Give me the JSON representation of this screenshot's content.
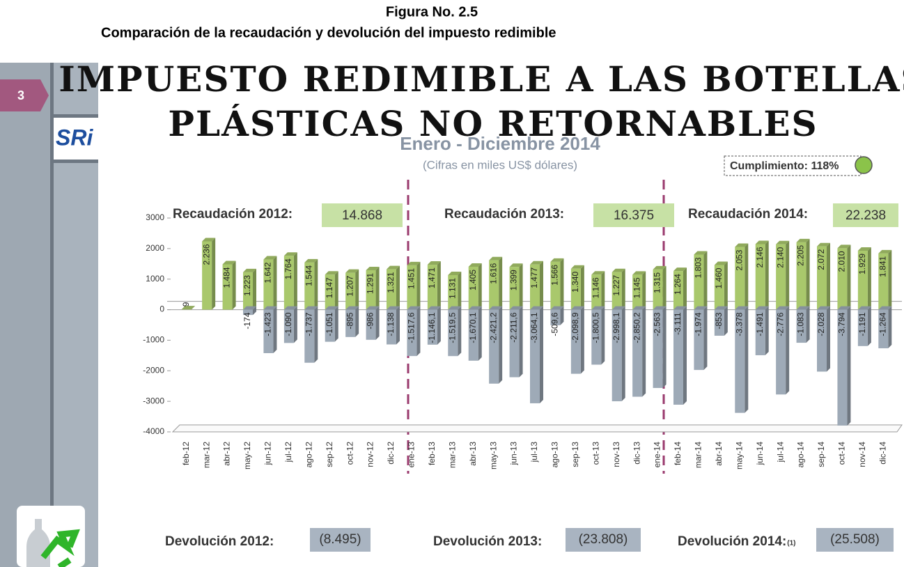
{
  "chart_data": {
    "type": "bar",
    "figure_label": "Figura No. 2.5",
    "caption": "Comparación de la recaudación y devolución del impuesto redimible",
    "title_lines": [
      "IMPUESTO REDIMIBLE A LAS BOTELLAS",
      "PLÁSTICAS NO RETORNABLES"
    ],
    "subtitle": "Enero - Diciembre 2014",
    "units_note": "(Cifras en miles US$ dólares)",
    "compliance": "Cumplimiento: 118%",
    "badge": "3",
    "logo": "SRi",
    "categories": [
      "feb-12",
      "mar-12",
      "abr-12",
      "may-12",
      "jun-12",
      "jul-12",
      "ago-12",
      "sep-12",
      "oct-12",
      "nov-12",
      "dic-12",
      "ene-13",
      "feb-13",
      "mar-13",
      "abr-13",
      "may-13",
      "jun-13",
      "jul-13",
      "ago-13",
      "sep-13",
      "oct-13",
      "nov-13",
      "dic-13",
      "ene-14",
      "feb-14",
      "mar-14",
      "abr-14",
      "may-14",
      "jun-14",
      "jul-14",
      "ago-14",
      "sep-14",
      "oct-14",
      "nov-14",
      "dic-14"
    ],
    "series": [
      {
        "color": "#a9c86c",
        "values": [
          9,
          2236,
          1484,
          1223,
          1642,
          1764,
          1544,
          1147,
          1207,
          1291,
          1321,
          1451,
          1471,
          1131,
          1405,
          1616,
          1399,
          1477,
          1566,
          1340,
          1146,
          1227,
          1145,
          1315,
          1264,
          1803,
          1460,
          2053,
          2146,
          2140,
          2205,
          2072,
          2010,
          1929,
          1841
        ],
        "value_labels": [
          "9",
          "2.236",
          "1.484",
          "1.223",
          "1.642",
          "1.764",
          "1.544",
          "1.147",
          "1.207",
          "1.291",
          "1.321",
          "1.451",
          "1.471",
          "1.131",
          "1.405",
          "1.616",
          "1.399",
          "1.477",
          "1.566",
          "1.340",
          "1.146",
          "1.227",
          "1.145",
          "1.315",
          "1.264",
          "1.803",
          "1.460",
          "2.053",
          "2.146",
          "2.140",
          "2.205",
          "2.072",
          "2.010",
          "1.929",
          "1.841"
        ]
      },
      {
        "color": "#9eaab7",
        "values": [
          null,
          null,
          null,
          -174,
          -1423,
          -1090,
          -1737,
          -1051,
          -895,
          -986,
          -1138,
          -1517.6,
          -1146.1,
          -1519.5,
          -1670.1,
          -2421.2,
          -2211.6,
          -3064.1,
          -509.6,
          -2098.9,
          -1800.5,
          -2998.1,
          -2850.2,
          -2563,
          -3111,
          -1974,
          -853,
          -3378,
          -1491,
          -2776,
          -1083,
          -2028,
          -3794,
          -1191,
          -1264
        ],
        "value_labels": [
          null,
          null,
          null,
          "-174",
          "-1.423",
          "-1.090",
          "-1.737",
          "-1.051",
          "-895",
          "-986",
          "-1.138",
          "-1.517,6",
          "-1.146,1",
          "-1.519,5",
          "-1.670,1",
          "-2.421,2",
          "-2.211,6",
          "-3.064,1",
          "-509,6",
          "-2.098,9",
          "-1.800,5",
          "-2.998,1",
          "-2.850,2",
          "-2.563",
          "-3.111",
          "-1.974",
          "-853",
          "-3.378",
          "-1.491",
          "-2.776",
          "-1.083",
          "-2.028",
          "-3.794",
          "-1.191",
          "-1.264"
        ]
      }
    ],
    "ylim": [
      -4000,
      3000
    ],
    "yticks": [
      3000,
      2000,
      1000,
      0,
      -1000,
      -2000,
      -3000,
      -4000
    ],
    "collections": [
      {
        "label": "Recaudación 2012:",
        "value": "14.868"
      },
      {
        "label": "Recaudación 2013:",
        "value": "16.375"
      },
      {
        "label": "Recaudación 2014:",
        "value": "22.238"
      }
    ],
    "refunds": [
      {
        "label": "Devolución 2012:",
        "value": "(8.495)"
      },
      {
        "label": "Devolución 2013:",
        "value": "(23.808)"
      },
      {
        "label": "Devolución 2014:",
        "note": "(1)",
        "value": "(25.508)"
      }
    ]
  }
}
